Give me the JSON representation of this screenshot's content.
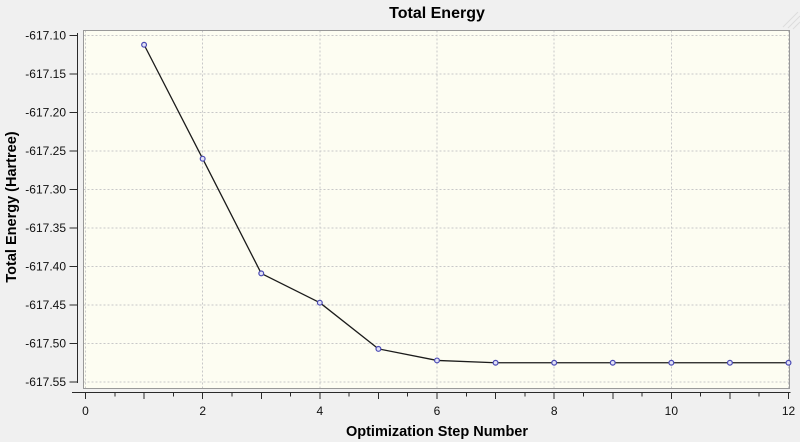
{
  "window": {
    "background": "#f0f0f0"
  },
  "chart_data": {
    "type": "line",
    "title": "Total Energy",
    "xlabel": "Optimization Step Number",
    "ylabel": "Total Energy (Hartree)",
    "x": [
      1,
      2,
      3,
      4,
      5,
      6,
      7,
      8,
      9,
      10,
      11,
      12
    ],
    "series": [
      {
        "name": "Total Energy",
        "values": [
          -617.112,
          -617.26,
          -617.409,
          -617.447,
          -617.507,
          -617.522,
          -617.525,
          -617.525,
          -617.525,
          -617.525,
          -617.525,
          -617.525
        ]
      }
    ],
    "xlim": [
      0,
      12
    ],
    "ylim": [
      -617.55,
      -617.1
    ],
    "x_labeled_tick_values": [
      0,
      2,
      4,
      6,
      8,
      10,
      12
    ],
    "x_tick_labels": [
      "0",
      "2",
      "4",
      "6",
      "8",
      "10",
      "12"
    ],
    "x_major_tick_step": 1,
    "x_minor_tick_step": 0.5,
    "y_tick_values": [
      -617.1,
      -617.15,
      -617.2,
      -617.25,
      -617.3,
      -617.35,
      -617.4,
      -617.45,
      -617.5,
      -617.55
    ],
    "y_tick_labels": [
      "-617.10",
      "-617.15",
      "-617.20",
      "-617.25",
      "-617.30",
      "-617.35",
      "-617.40",
      "-617.45",
      "-617.50",
      "-617.55"
    ],
    "grid": true,
    "grid_style": "dashed",
    "legend_position": "none",
    "marker": "open-circle",
    "colors": {
      "background": "#f0f0f0",
      "plot_background": "#fdfdf2",
      "grid": "#c8c8c8",
      "plot_border": "#999999",
      "axis": "#2a2a2a",
      "line": "#1b1b1b",
      "marker_stroke": "#4a4ab4",
      "marker_fill": "#e2e2f6",
      "text": "#000000"
    }
  }
}
